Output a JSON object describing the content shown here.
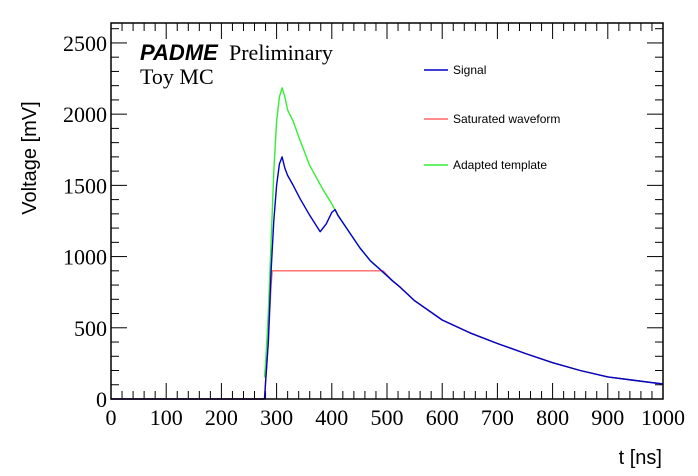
{
  "chart_data": {
    "type": "line",
    "title": "",
    "annotations": {
      "experiment": "PADME",
      "status": "Preliminary",
      "subtitle": "Toy MC"
    },
    "xlabel": "t [ns]",
    "ylabel": "Voltage [mV]",
    "xlim": [
      0,
      1000
    ],
    "ylim": [
      0,
      2640
    ],
    "xticks": [
      "0",
      "100",
      "200",
      "300",
      "400",
      "500",
      "600",
      "700",
      "800",
      "900",
      "1000"
    ],
    "xtick_values": [
      0,
      100,
      200,
      300,
      400,
      500,
      600,
      700,
      800,
      900,
      1000
    ],
    "yticks": [
      "0",
      "500",
      "1000",
      "1500",
      "2000",
      "2500"
    ],
    "ytick_values": [
      0,
      500,
      1000,
      1500,
      2000,
      2500
    ],
    "grid": false,
    "legend_position": "top-right",
    "series": [
      {
        "name": "Signal",
        "color": "#0000cc",
        "x": [
          0,
          278,
          280,
          285,
          290,
          295,
          300,
          305,
          310,
          315,
          320,
          330,
          342,
          360,
          379,
          390,
          400,
          406,
          411,
          430,
          451,
          470,
          493,
          510,
          524,
          550,
          600,
          650,
          700,
          750,
          800,
          850,
          900,
          950,
          1000
        ],
        "y": [
          0,
          0,
          120,
          400,
          900,
          1250,
          1500,
          1650,
          1700,
          1620,
          1570,
          1500,
          1410,
          1290,
          1175,
          1230,
          1310,
          1330,
          1290,
          1180,
          1060,
          970,
          890,
          830,
          785,
          690,
          555,
          465,
          390,
          320,
          255,
          200,
          155,
          130,
          105
        ]
      },
      {
        "name": "Saturated waveform",
        "color": "#ff6666",
        "x": [
          0,
          278,
          280,
          285,
          290,
          292,
          493,
          510,
          524,
          550,
          600,
          650,
          700,
          750,
          800,
          850,
          900,
          950,
          1000
        ],
        "y": [
          0,
          0,
          120,
          400,
          800,
          900,
          900,
          830,
          785,
          690,
          555,
          465,
          390,
          320,
          255,
          200,
          155,
          130,
          105
        ]
      },
      {
        "name": "Adapted template",
        "color": "#33ee33",
        "x": [
          278,
          280,
          285,
          290,
          295,
          300,
          305,
          310,
          315,
          320,
          330,
          342,
          360,
          384,
          400,
          411,
          430,
          451,
          470,
          493,
          510,
          524,
          550,
          600,
          650,
          700,
          750,
          800,
          850,
          900,
          950,
          1000
        ],
        "y": [
          150,
          250,
          600,
          1100,
          1600,
          1950,
          2120,
          2185,
          2120,
          2030,
          1950,
          1820,
          1640,
          1470,
          1370,
          1290,
          1180,
          1060,
          970,
          890,
          830,
          785,
          690,
          555,
          465,
          390,
          320,
          255,
          200,
          155,
          130,
          105
        ]
      }
    ]
  }
}
